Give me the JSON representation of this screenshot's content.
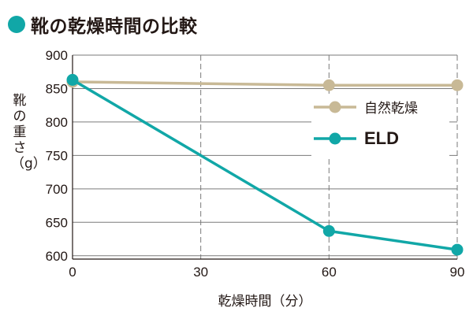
{
  "title": "靴の乾燥時間の比較",
  "colors": {
    "accent": "#11a7a7",
    "natural": "#c8b996",
    "eld": "#11a7a7",
    "grid": "#7a7a7a"
  },
  "chart_data": {
    "type": "line",
    "title": "靴の乾燥時間の比較",
    "xlabel": "乾燥時間（分）",
    "ylabel": "靴の重さ（g）",
    "x": [
      0,
      60,
      90
    ],
    "xticks": [
      0,
      30,
      60,
      90
    ],
    "yticks": [
      600,
      650,
      700,
      750,
      800,
      850,
      900
    ],
    "xlim": [
      0,
      90
    ],
    "ylim": [
      595,
      900
    ],
    "grid": true,
    "legend_position": "top-right",
    "series": [
      {
        "name": "自然乾燥",
        "color": "#c8b996",
        "values": [
          860,
          855,
          855
        ]
      },
      {
        "name": "ELD",
        "color": "#11a7a7",
        "values": [
          863,
          637,
          609
        ]
      }
    ]
  }
}
